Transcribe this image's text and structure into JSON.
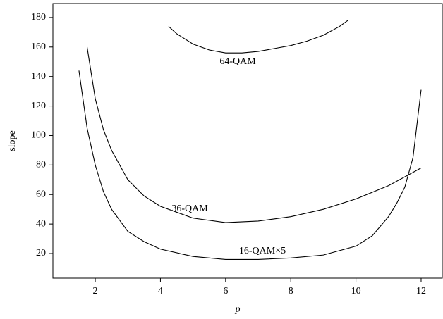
{
  "chart_data": {
    "type": "line",
    "x_label": "p",
    "y_label": "slope",
    "xlim": [
      0.7,
      12.65
    ],
    "ylim": [
      3.3,
      189.5
    ],
    "xticks": [
      2,
      4,
      6,
      8,
      10,
      12
    ],
    "yticks": [
      20,
      40,
      60,
      80,
      100,
      120,
      140,
      160,
      180
    ],
    "grid": false,
    "series": [
      {
        "name": "64-QAM",
        "color": "#000000",
        "x": [
          4.25,
          4.5,
          5,
          5.5,
          6,
          6.5,
          7,
          7.5,
          8,
          8.5,
          9,
          9.5,
          9.75
        ],
        "values": [
          174,
          169,
          162,
          158,
          156,
          156,
          157,
          159,
          161,
          164,
          168,
          174,
          178
        ]
      },
      {
        "name": "36-QAM",
        "color": "#000000",
        "x": [
          1.75,
          2,
          2.25,
          2.5,
          3,
          3.5,
          4,
          5,
          6,
          7,
          8,
          9,
          10,
          11,
          12
        ],
        "values": [
          160,
          125,
          104,
          90,
          70,
          59,
          52,
          44,
          41,
          42,
          45,
          50,
          57,
          66,
          78
        ]
      },
      {
        "name": "16-QAM×5",
        "color": "#000000",
        "x": [
          1.5,
          1.75,
          2,
          2.25,
          2.5,
          3,
          3.5,
          4,
          5,
          6,
          7,
          8,
          9,
          10,
          10.5,
          11,
          11.25,
          11.5,
          11.75,
          12
        ],
        "values": [
          144,
          105,
          80,
          62,
          50,
          35,
          28,
          23,
          18,
          16,
          16,
          17,
          19,
          25,
          32,
          45,
          54,
          65,
          85,
          131
        ]
      }
    ]
  }
}
